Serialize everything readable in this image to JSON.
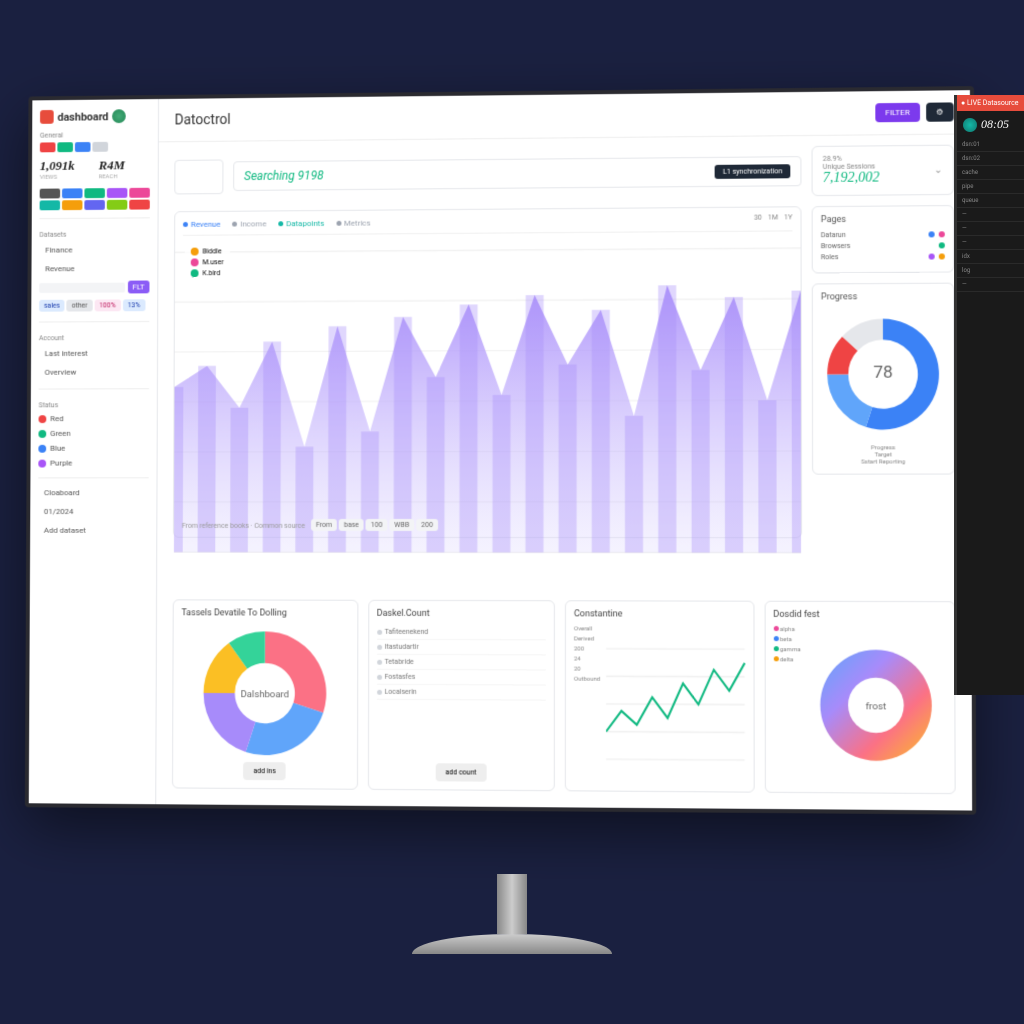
{
  "brand": {
    "name": "dashboard",
    "logo_color": "#e74c3c"
  },
  "header": {
    "title": "Datoctrol",
    "btn_primary": "FILTER",
    "btn_dark": "⚙"
  },
  "sidebar": {
    "section1_label": "General",
    "metric1_val": "1,091k",
    "metric1_label": "VIEWS",
    "metric2_val": "R4M",
    "metric2_label": "REACH",
    "grid_colors": [
      "#555",
      "#3b82f6",
      "#10b981",
      "#a855f7",
      "#ec4899",
      "#14b8a6",
      "#f59e0b",
      "#6366f1",
      "#84cc16",
      "#ef4444"
    ],
    "section2_label": "Datasets",
    "nav": [
      "Finance",
      "Revenue"
    ],
    "filter_btn": "FLT",
    "pills": [
      {
        "text": "sales",
        "bg": "#dbeafe",
        "fg": "#1e40af"
      },
      {
        "text": "other",
        "bg": "#e5e7eb",
        "fg": "#555"
      },
      {
        "text": "100%",
        "bg": "#fce7f3",
        "fg": "#be185d"
      },
      {
        "text": "13%",
        "bg": "#dbeafe",
        "fg": "#1e40af"
      }
    ],
    "section3_label": "Account",
    "acct_items": [
      "Last interest",
      "Overview"
    ],
    "section4_label": "Status",
    "legend": [
      {
        "c": "#ef4444",
        "t": "Red"
      },
      {
        "c": "#10b981",
        "t": "Green"
      },
      {
        "c": "#3b82f6",
        "t": "Blue"
      },
      {
        "c": "#a855f7",
        "t": "Purple"
      }
    ],
    "footer_items": [
      "Cloaboard",
      "01/2024",
      "Add dataset"
    ]
  },
  "search": {
    "label": "Searching",
    "value": "9198",
    "chip": "L1 synchronization"
  },
  "top_metric": {
    "label": "Unique Sessions",
    "value": "7,192,002",
    "sublabel": "28.9%"
  },
  "main_chart": {
    "type": "area",
    "tabs": [
      {
        "label": "Revenue",
        "color": "#3b82f6",
        "active": true
      },
      {
        "label": "Income",
        "color": "#9ca3af"
      },
      {
        "label": "Datapoints",
        "color": "#14b8a6"
      },
      {
        "label": "Metrics",
        "color": "#9ca3af"
      }
    ],
    "right_tabs": [
      "30",
      "1M",
      "1Y"
    ],
    "legend_users": [
      {
        "name": "Biddle",
        "c": "#f59e0b"
      },
      {
        "name": "M.user",
        "c": "#ec4899"
      },
      {
        "name": "K.bird",
        "c": "#10b981"
      }
    ],
    "fill_top": "#a78bfa",
    "fill_bottom": "#ddd6fe",
    "grid_color": "#f0f0f0",
    "values": [
      55,
      62,
      48,
      70,
      35,
      75,
      40,
      78,
      58,
      82,
      52,
      85,
      62,
      80,
      45,
      88,
      60,
      84,
      50,
      86
    ],
    "xlabels": [
      "",
      "",
      "",
      "",
      "0",
      "",
      "",
      "",
      ""
    ],
    "footer_text": "From reference books · Common source",
    "footer_pills": [
      "From",
      "base",
      "100",
      "WBB",
      "200"
    ]
  },
  "pages_card": {
    "title": "Pages",
    "rows": [
      {
        "label": "Datarun",
        "badges": [
          "#3b82f6",
          "#ec4899"
        ]
      },
      {
        "label": "Browsers",
        "badges": [
          "#10b981"
        ]
      },
      {
        "label": "Roles",
        "badges": [
          "#a855f7",
          "#f59e0b"
        ]
      }
    ]
  },
  "donut1": {
    "title": "Progress",
    "center_label": "78",
    "slices": [
      {
        "c": "#3b82f6",
        "v": 55
      },
      {
        "c": "#60a5fa",
        "v": 20
      },
      {
        "c": "#ef4444",
        "v": 12
      },
      {
        "c": "#e5e7eb",
        "v": 13
      }
    ],
    "footer": [
      "Progress",
      "Target",
      "Sstart Reporting"
    ]
  },
  "bottom": {
    "card1": {
      "title": "Tassels Devatile To Dolling",
      "donut_center": "Dalshboard",
      "slices": [
        {
          "c": "#fb7185",
          "v": 30
        },
        {
          "c": "#60a5fa",
          "v": 25
        },
        {
          "c": "#a78bfa",
          "v": 20
        },
        {
          "c": "#fbbf24",
          "v": 15
        },
        {
          "c": "#34d399",
          "v": 10
        }
      ],
      "button": "add ins"
    },
    "card2": {
      "title": "Daskel.Count",
      "items": [
        "Tafiteenekend",
        "Itastudartir",
        "Tetabride",
        "Fostasfes",
        "Localserin"
      ],
      "button": "add count"
    },
    "card3": {
      "title": "Constantine",
      "sub_items": [
        "Overall",
        "Derived",
        "200",
        "24",
        "20",
        "Outbound"
      ],
      "line_color": "#10b981",
      "values": [
        20,
        35,
        25,
        45,
        30,
        55,
        40,
        65,
        50,
        70
      ]
    },
    "card4": {
      "title": "Dosdid fest",
      "legend": [
        {
          "c": "#ec4899",
          "t": "alpha"
        },
        {
          "c": "#3b82f6",
          "t": "beta"
        },
        {
          "c": "#10b981",
          "t": "gamma"
        },
        {
          "c": "#f59e0b",
          "t": "delta"
        }
      ],
      "center": "frost",
      "gradient": [
        "#60a5fa",
        "#a78bfa",
        "#fb7185",
        "#fbbf24"
      ]
    }
  },
  "second_monitor": {
    "header": "● LIVE Datasource",
    "clock": "08:05",
    "rows": [
      "dsn:01",
      "dsn:02",
      "cache",
      "pipe",
      "queue",
      "—",
      "—",
      "—",
      "idx",
      "log",
      "—"
    ]
  }
}
